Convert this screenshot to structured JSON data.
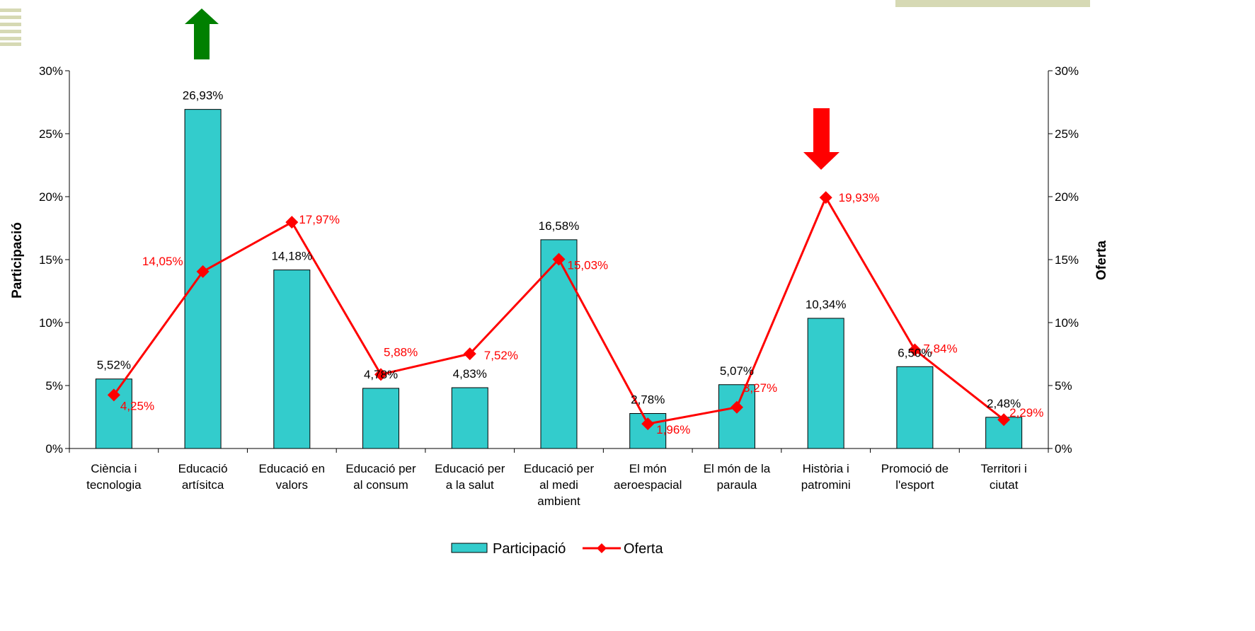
{
  "colors": {
    "bar_fill": "#33cccc",
    "bar_stroke": "#000000",
    "line": "#ff0000",
    "arrow_up": "#008000",
    "arrow_down": "#ff0000",
    "deco": "#d6d9b4"
  },
  "decorations": {
    "up_arrow_icon": "up-arrow",
    "down_arrow_icon": "down-arrow"
  },
  "chart_data": {
    "type": "bar",
    "categories": [
      [
        "Ciència i",
        "tecnologia"
      ],
      [
        "Educació",
        "artísitca"
      ],
      [
        "Educació en",
        "valors"
      ],
      [
        "Educació per",
        "al consum"
      ],
      [
        "Educació per",
        "a la salut"
      ],
      [
        "Educació per",
        "al medi",
        "ambient"
      ],
      [
        "El món",
        "aeroespacial"
      ],
      [
        "El món de la",
        "paraula"
      ],
      [
        "Història i",
        "patromini"
      ],
      [
        "Promoció de",
        "l'esport"
      ],
      [
        "Territori i",
        "ciutat"
      ]
    ],
    "series": [
      {
        "name": "Participació",
        "type": "bar",
        "axis": "left",
        "values": [
          5.52,
          26.93,
          14.18,
          4.78,
          4.83,
          16.58,
          2.78,
          5.07,
          10.34,
          6.5,
          2.48
        ],
        "labels": [
          "5,52%",
          "26,93%",
          "14,18%",
          "4,78%",
          "4,83%",
          "16,58%",
          "2,78%",
          "5,07%",
          "10,34%",
          "6,50%",
          "2,48%"
        ]
      },
      {
        "name": "Oferta",
        "type": "line",
        "axis": "right",
        "values": [
          4.25,
          14.05,
          17.97,
          5.88,
          7.52,
          15.03,
          1.96,
          3.27,
          19.93,
          7.84,
          2.29
        ],
        "labels": [
          "4,25%",
          "14,05%",
          "17,97%",
          "5,88%",
          "7,52%",
          "15,03%",
          "1,96%",
          "3,27%",
          "19,93%",
          "7,84%",
          "2,29%"
        ]
      }
    ],
    "ylabel": "Participació",
    "y2label": "Oferta",
    "ylim": [
      0,
      30
    ],
    "y2lim": [
      0,
      30
    ],
    "yticks": [
      0,
      5,
      10,
      15,
      20,
      25,
      30
    ],
    "ytick_labels": [
      "0%",
      "5%",
      "10%",
      "15%",
      "20%",
      "25%",
      "30%"
    ],
    "y2tick_labels": [
      "0%",
      "5%",
      "10%",
      "15%",
      "20%",
      "25%",
      "30%"
    ],
    "legend_placement": "bottom",
    "grid": false
  }
}
